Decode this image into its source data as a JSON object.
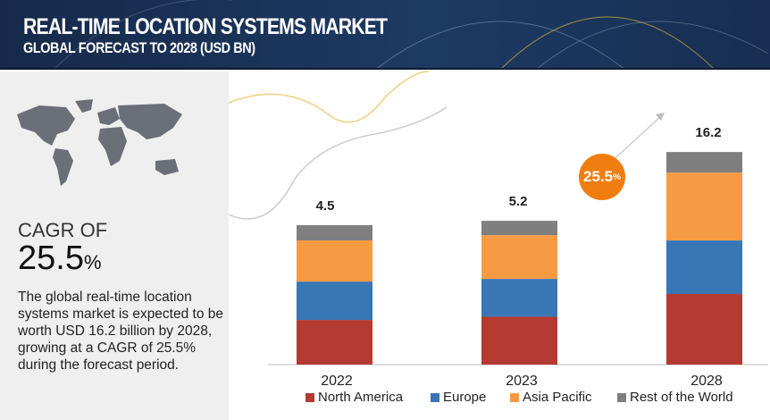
{
  "header": {
    "title": "REAL-TIME LOCATION SYSTEMS MARKET",
    "subtitle": "GLOBAL FORECAST TO 2028 (USD BN)"
  },
  "left_panel": {
    "cagr_label": "CAGR OF",
    "cagr_value": "25.5",
    "cagr_unit": "%",
    "description": "The global real-time location systems market is expected to be worth USD 16.2 billion by 2028, growing at a CAGR of 25.5% during the forecast period."
  },
  "callout": {
    "value": "25.5",
    "unit": "%",
    "color": "#f07d10"
  },
  "chart_data": {
    "type": "bar",
    "stacked": true,
    "categories": [
      "2022",
      "2023",
      "2028"
    ],
    "totals": [
      "4.5",
      "5.2",
      "16.2"
    ],
    "total_values": [
      4.5,
      5.2,
      16.2
    ],
    "series": [
      {
        "name": "North America",
        "color": "#b53a31",
        "values": [
          1.44,
          1.73,
          5.38
        ]
      },
      {
        "name": "Europe",
        "color": "#3876b6",
        "values": [
          1.24,
          1.37,
          4.08
        ]
      },
      {
        "name": "Asia Pacific",
        "color": "#f79a44",
        "values": [
          1.33,
          1.58,
          5.17
        ]
      },
      {
        "name": "Rest of the World",
        "color": "#7f7f7f",
        "values": [
          0.49,
          0.52,
          1.57
        ]
      }
    ],
    "legend_position": "bottom",
    "grid": false,
    "yaxis_visible": false
  }
}
